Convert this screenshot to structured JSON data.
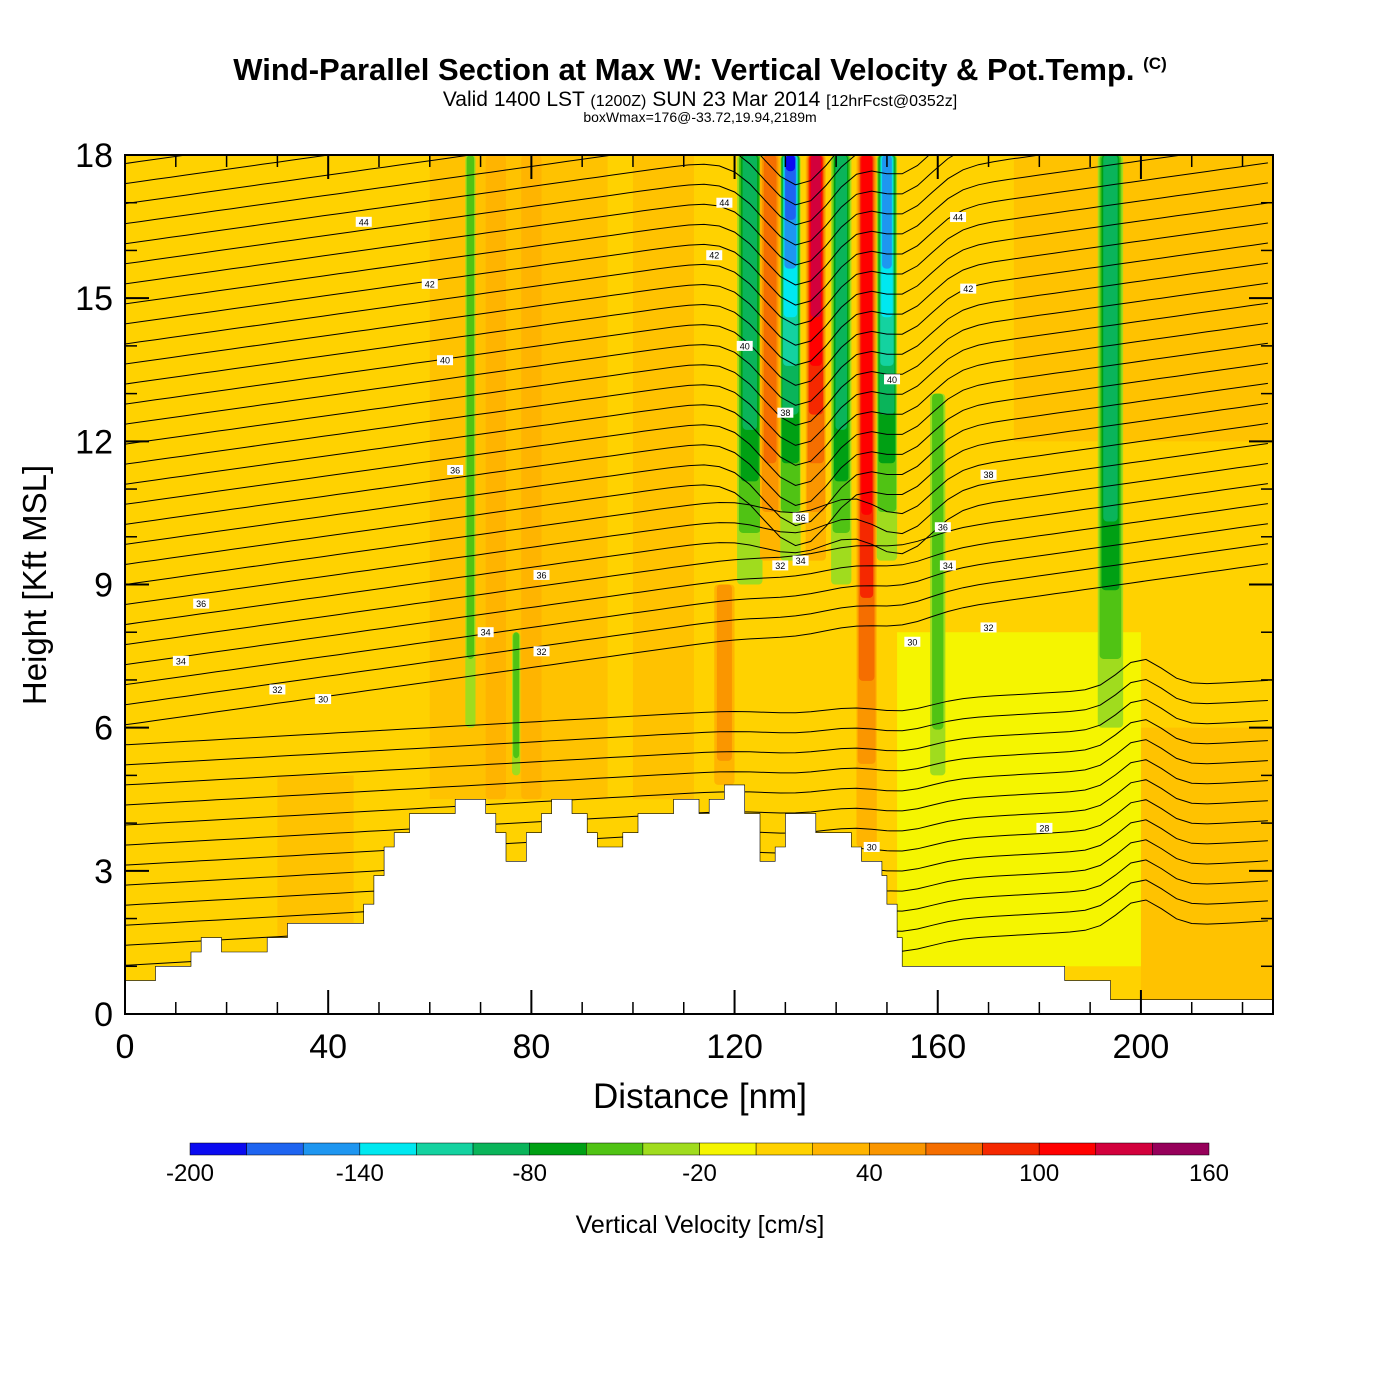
{
  "header": {
    "title_main": "Wind-Parallel Section at Max W: Vertical Velocity & Pot.Temp.",
    "title_copyright": "(C)",
    "valid_prefix": "Valid 1400 LST",
    "valid_utc": "(1200Z)",
    "valid_date": "SUN 23 Mar 2014",
    "forecast": "[12hrFcst@0352z]",
    "box_info": "boxWmax=176@-33.72,19.94,2189m"
  },
  "chart_data": {
    "type": "heatmap",
    "title": "Wind-Parallel Section at Max W: Vertical Velocity & Pot.Temp.",
    "xlabel": "Distance [nm]",
    "ylabel": "Height [Kft MSL]",
    "xlim": [
      0,
      226
    ],
    "ylim": [
      0,
      18
    ],
    "xticks": [
      0,
      40,
      80,
      120,
      160,
      200
    ],
    "yticks": [
      0,
      3,
      6,
      9,
      12,
      15,
      18
    ],
    "colorbar": {
      "label": "Vertical Velocity [cm/s]",
      "min": -200,
      "max": 160,
      "step": 20,
      "tick_labels": [
        "-200",
        "-140",
        "-80",
        "-20",
        "40",
        "100",
        "160"
      ],
      "colors": [
        "#0a0af0",
        "#1e64f0",
        "#1e96f0",
        "#00e8f0",
        "#14d2a0",
        "#0ab45a",
        "#00a014",
        "#50c314",
        "#a0dc1e",
        "#f5f500",
        "#ffd200",
        "#ffb400",
        "#fa9600",
        "#f56e00",
        "#f52800",
        "#ff0000",
        "#d2003c",
        "#96005a"
      ]
    },
    "terrain_kft": [
      [
        0,
        0.7
      ],
      [
        6,
        0.7
      ],
      [
        6,
        1.0
      ],
      [
        13,
        1.0
      ],
      [
        13,
        1.3
      ],
      [
        15,
        1.3
      ],
      [
        15,
        1.6
      ],
      [
        19,
        1.6
      ],
      [
        19,
        1.3
      ],
      [
        28,
        1.3
      ],
      [
        28,
        1.6
      ],
      [
        32,
        1.6
      ],
      [
        32,
        1.9
      ],
      [
        47,
        1.9
      ],
      [
        47,
        2.3
      ],
      [
        49,
        2.3
      ],
      [
        49,
        2.9
      ],
      [
        51,
        2.9
      ],
      [
        51,
        3.5
      ],
      [
        53,
        3.5
      ],
      [
        53,
        3.8
      ],
      [
        56,
        3.8
      ],
      [
        56,
        4.2
      ],
      [
        65,
        4.2
      ],
      [
        65,
        4.5
      ],
      [
        71,
        4.5
      ],
      [
        71,
        4.2
      ],
      [
        73,
        4.2
      ],
      [
        73,
        3.8
      ],
      [
        75,
        3.8
      ],
      [
        75,
        3.2
      ],
      [
        79,
        3.2
      ],
      [
        79,
        3.8
      ],
      [
        82,
        3.8
      ],
      [
        82,
        4.2
      ],
      [
        84,
        4.2
      ],
      [
        84,
        4.5
      ],
      [
        88,
        4.5
      ],
      [
        88,
        4.2
      ],
      [
        91,
        4.2
      ],
      [
        91,
        3.8
      ],
      [
        93,
        3.8
      ],
      [
        93,
        3.5
      ],
      [
        98,
        3.5
      ],
      [
        98,
        3.8
      ],
      [
        101,
        3.8
      ],
      [
        101,
        4.2
      ],
      [
        108,
        4.2
      ],
      [
        108,
        4.5
      ],
      [
        113,
        4.5
      ],
      [
        113,
        4.2
      ],
      [
        115,
        4.2
      ],
      [
        115,
        4.5
      ],
      [
        118,
        4.5
      ],
      [
        118,
        4.8
      ],
      [
        122,
        4.8
      ],
      [
        122,
        4.2
      ],
      [
        125,
        4.2
      ],
      [
        125,
        3.2
      ],
      [
        128,
        3.2
      ],
      [
        128,
        3.5
      ],
      [
        130,
        3.5
      ],
      [
        130,
        4.2
      ],
      [
        136,
        4.2
      ],
      [
        136,
        3.8
      ],
      [
        143,
        3.8
      ],
      [
        143,
        3.5
      ],
      [
        145,
        3.5
      ],
      [
        145,
        3.2
      ],
      [
        149,
        3.2
      ],
      [
        149,
        2.9
      ],
      [
        150,
        2.9
      ],
      [
        150,
        2.3
      ],
      [
        152,
        2.3
      ],
      [
        152,
        1.6
      ],
      [
        153,
        1.6
      ],
      [
        153,
        1.0
      ],
      [
        185,
        1.0
      ],
      [
        185,
        0.7
      ],
      [
        194,
        0.7
      ],
      [
        194,
        0.3
      ],
      [
        226,
        0.3
      ]
    ],
    "vertical_velocity_features": [
      {
        "x": 68,
        "halfwidth": 1.0,
        "y0": 6.0,
        "y1": 18,
        "w": -40
      },
      {
        "x": 77,
        "halfwidth": 0.8,
        "y0": 5.0,
        "y1": 8.0,
        "w": -50
      },
      {
        "x": 73,
        "halfwidth": 2.0,
        "y0": 4.5,
        "y1": 18,
        "w": 35
      },
      {
        "x": 80,
        "halfwidth": 2.0,
        "y0": 4.5,
        "y1": 18,
        "w": 28
      },
      {
        "x": 118,
        "halfwidth": 2.0,
        "y0": 4.8,
        "y1": 9.0,
        "w": 55
      },
      {
        "x": 123,
        "halfwidth": 2.5,
        "y0": 9.0,
        "y1": 18,
        "w": -80
      },
      {
        "x": 127,
        "halfwidth": 2.0,
        "y0": 9.5,
        "y1": 18,
        "w": 60
      },
      {
        "x": 131,
        "halfwidth": 2.0,
        "y0": 9.5,
        "y1": 18,
        "w": -185
      },
      {
        "x": 136,
        "halfwidth": 2.0,
        "y0": 9.5,
        "y1": 18,
        "w": 120
      },
      {
        "x": 141,
        "halfwidth": 2.0,
        "y0": 9.0,
        "y1": 18,
        "w": -90
      },
      {
        "x": 146,
        "halfwidth": 2.0,
        "y0": 3.5,
        "y1": 18,
        "w": 110
      },
      {
        "x": 150,
        "halfwidth": 2.0,
        "y0": 9.5,
        "y1": 18,
        "w": -150
      },
      {
        "x": 160,
        "halfwidth": 1.5,
        "y0": 5.0,
        "y1": 13.0,
        "w": -40
      },
      {
        "x": 194,
        "halfwidth": 2.5,
        "y0": 6.0,
        "y1": 18,
        "w": -85
      }
    ],
    "potential_temperature_labels": [
      {
        "label": "44",
        "x": 47,
        "y": 16.6
      },
      {
        "label": "42",
        "x": 60,
        "y": 15.3
      },
      {
        "label": "40",
        "x": 63,
        "y": 13.7
      },
      {
        "label": "36",
        "x": 65,
        "y": 11.4
      },
      {
        "label": "36",
        "x": 15,
        "y": 8.6
      },
      {
        "label": "34",
        "x": 11,
        "y": 7.4
      },
      {
        "label": "32",
        "x": 30,
        "y": 6.8
      },
      {
        "label": "30",
        "x": 39,
        "y": 6.6
      },
      {
        "label": "34",
        "x": 71,
        "y": 8.0
      },
      {
        "label": "36",
        "x": 82,
        "y": 9.2
      },
      {
        "label": "32",
        "x": 82,
        "y": 7.6
      },
      {
        "label": "44",
        "x": 118,
        "y": 17.0
      },
      {
        "label": "42",
        "x": 116,
        "y": 15.9
      },
      {
        "label": "40",
        "x": 122,
        "y": 14.0
      },
      {
        "label": "38",
        "x": 130,
        "y": 12.6
      },
      {
        "label": "36",
        "x": 133,
        "y": 10.4
      },
      {
        "label": "34",
        "x": 133,
        "y": 9.5
      },
      {
        "label": "32",
        "x": 129,
        "y": 9.4
      },
      {
        "label": "40",
        "x": 151,
        "y": 13.3
      },
      {
        "label": "44",
        "x": 164,
        "y": 16.7
      },
      {
        "label": "42",
        "x": 166,
        "y": 15.2
      },
      {
        "label": "38",
        "x": 170,
        "y": 11.3
      },
      {
        "label": "36",
        "x": 161,
        "y": 10.2
      },
      {
        "label": "34",
        "x": 162,
        "y": 9.4
      },
      {
        "label": "32",
        "x": 170,
        "y": 8.1
      },
      {
        "label": "30",
        "x": 155,
        "y": 7.8
      },
      {
        "label": "30",
        "x": 147,
        "y": 3.5
      },
      {
        "label": "28",
        "x": 181,
        "y": 3.9
      }
    ]
  }
}
